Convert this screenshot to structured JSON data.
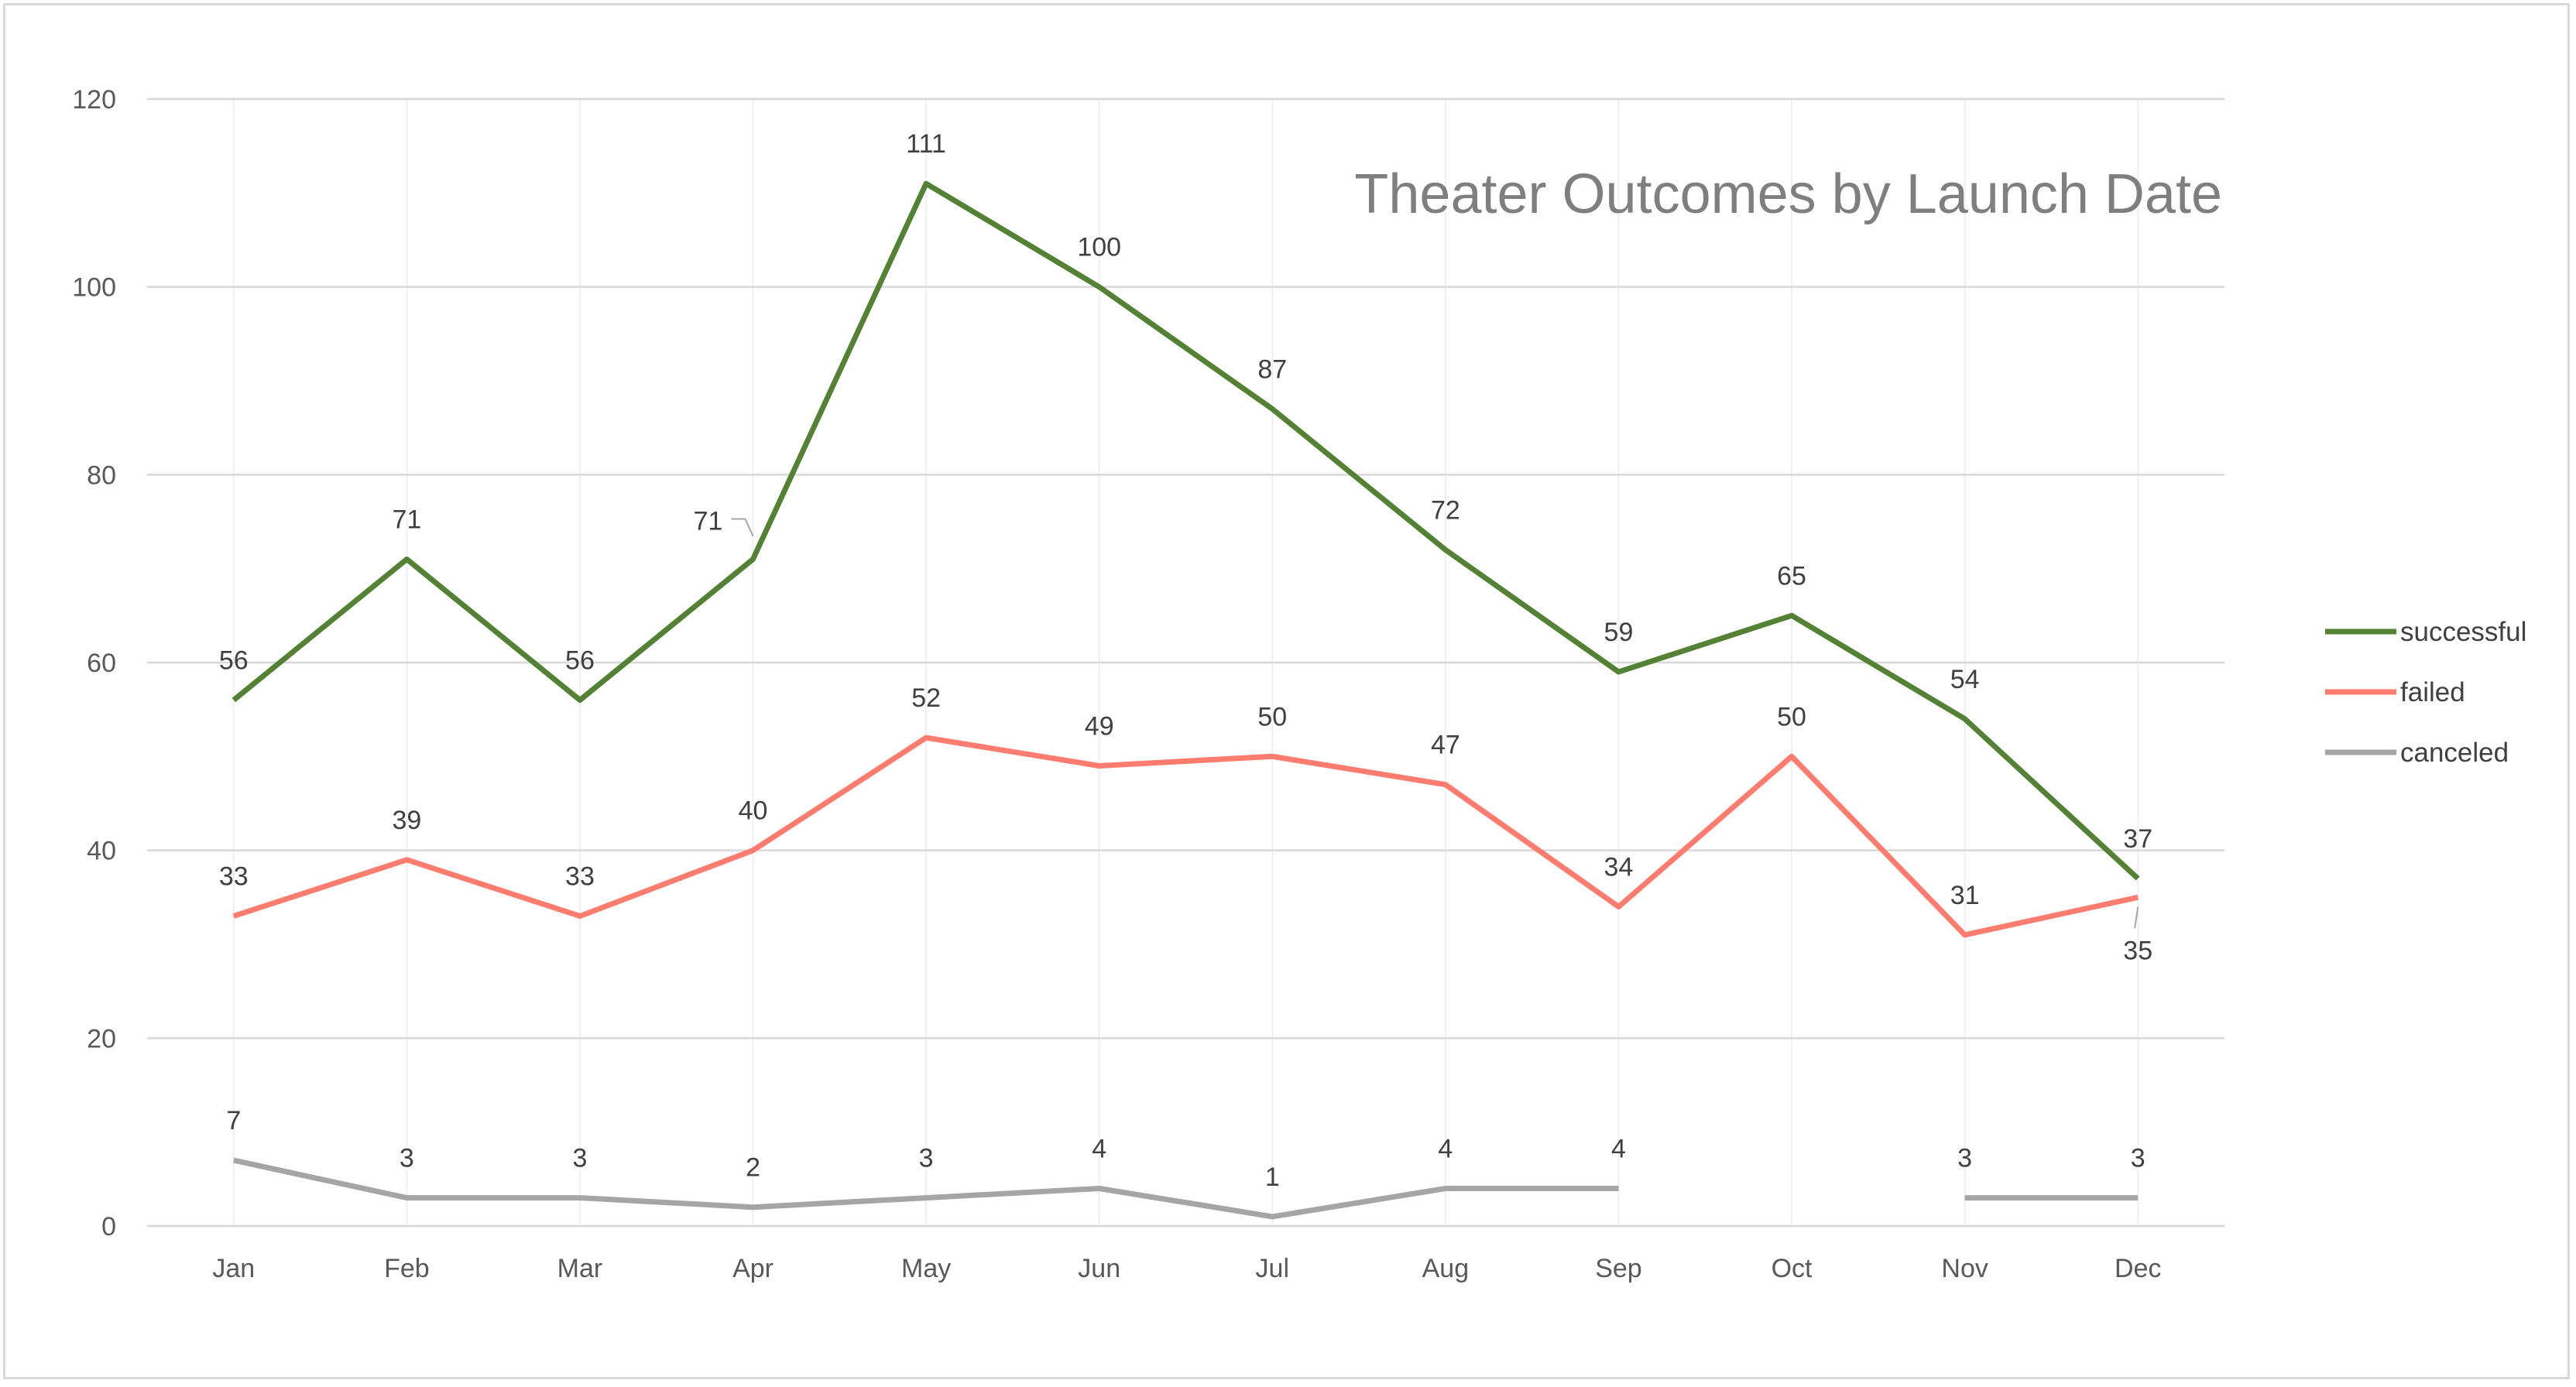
{
  "chart_data": {
    "type": "line",
    "title": "Theater Outcomes by Launch Date",
    "xlabel": "",
    "ylabel": "",
    "categories": [
      "Jan",
      "Feb",
      "Mar",
      "Apr",
      "May",
      "Jun",
      "Jul",
      "Aug",
      "Sep",
      "Oct",
      "Nov",
      "Dec"
    ],
    "ylim": [
      0,
      120
    ],
    "yticks": [
      "0",
      "20",
      "40",
      "60",
      "80",
      "100",
      "120"
    ],
    "grid": "horizontal",
    "legend_position": "right",
    "series": [
      {
        "name": "successful",
        "color": "#548235",
        "values": [
          56,
          71,
          56,
          71,
          111,
          100,
          87,
          72,
          59,
          65,
          54,
          37
        ]
      },
      {
        "name": "failed",
        "color": "#ff7c6e",
        "values": [
          33,
          39,
          33,
          40,
          52,
          49,
          50,
          47,
          34,
          50,
          31,
          35
        ]
      },
      {
        "name": "canceled",
        "color": "#a5a5a5",
        "values": [
          7,
          3,
          3,
          2,
          3,
          4,
          1,
          4,
          4,
          null,
          3,
          3
        ]
      }
    ]
  }
}
